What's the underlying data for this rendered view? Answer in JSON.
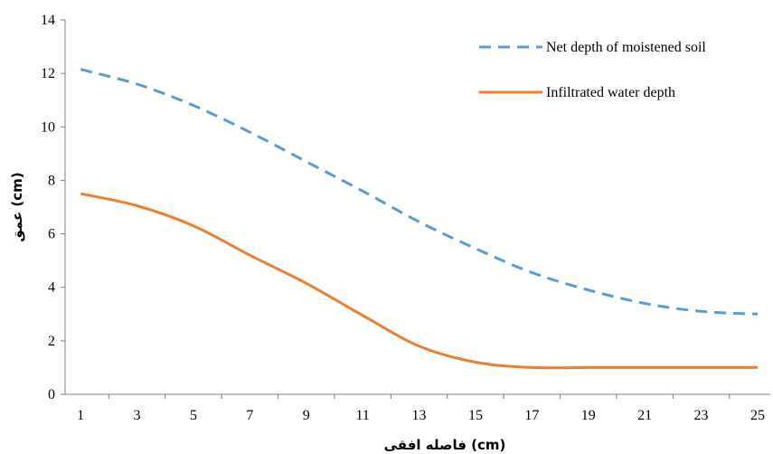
{
  "chart_data": {
    "type": "line",
    "title": "",
    "xlabel": "فاصله افقی (cm)",
    "ylabel": "عمق (cm)",
    "x": [
      1,
      3,
      5,
      7,
      9,
      11,
      13,
      15,
      17,
      19,
      21,
      23,
      25
    ],
    "x_ticks": [
      "1",
      "3",
      "5",
      "7",
      "9",
      "11",
      "13",
      "15",
      "17",
      "19",
      "21",
      "23",
      "25"
    ],
    "xlim": [
      0.45,
      25.45
    ],
    "ylim": [
      0,
      14
    ],
    "y_ticks": [
      "0",
      "2",
      "4",
      "6",
      "8",
      "10",
      "12",
      "14"
    ],
    "grid": false,
    "legend_position": "top-right",
    "series": [
      {
        "name": "Net depth of moistened soil",
        "style": "dashed",
        "color": "#5b9bd5",
        "values": [
          12.15,
          11.6,
          10.8,
          9.8,
          8.7,
          7.6,
          6.45,
          5.45,
          4.55,
          3.9,
          3.4,
          3.1,
          3.0
        ]
      },
      {
        "name": "Infiltrated water depth",
        "style": "solid",
        "color": "#ed7d31",
        "values": [
          7.5,
          7.05,
          6.3,
          5.2,
          4.15,
          2.95,
          1.8,
          1.2,
          1.0,
          1.0,
          1.0,
          1.0,
          1.0
        ]
      }
    ]
  }
}
